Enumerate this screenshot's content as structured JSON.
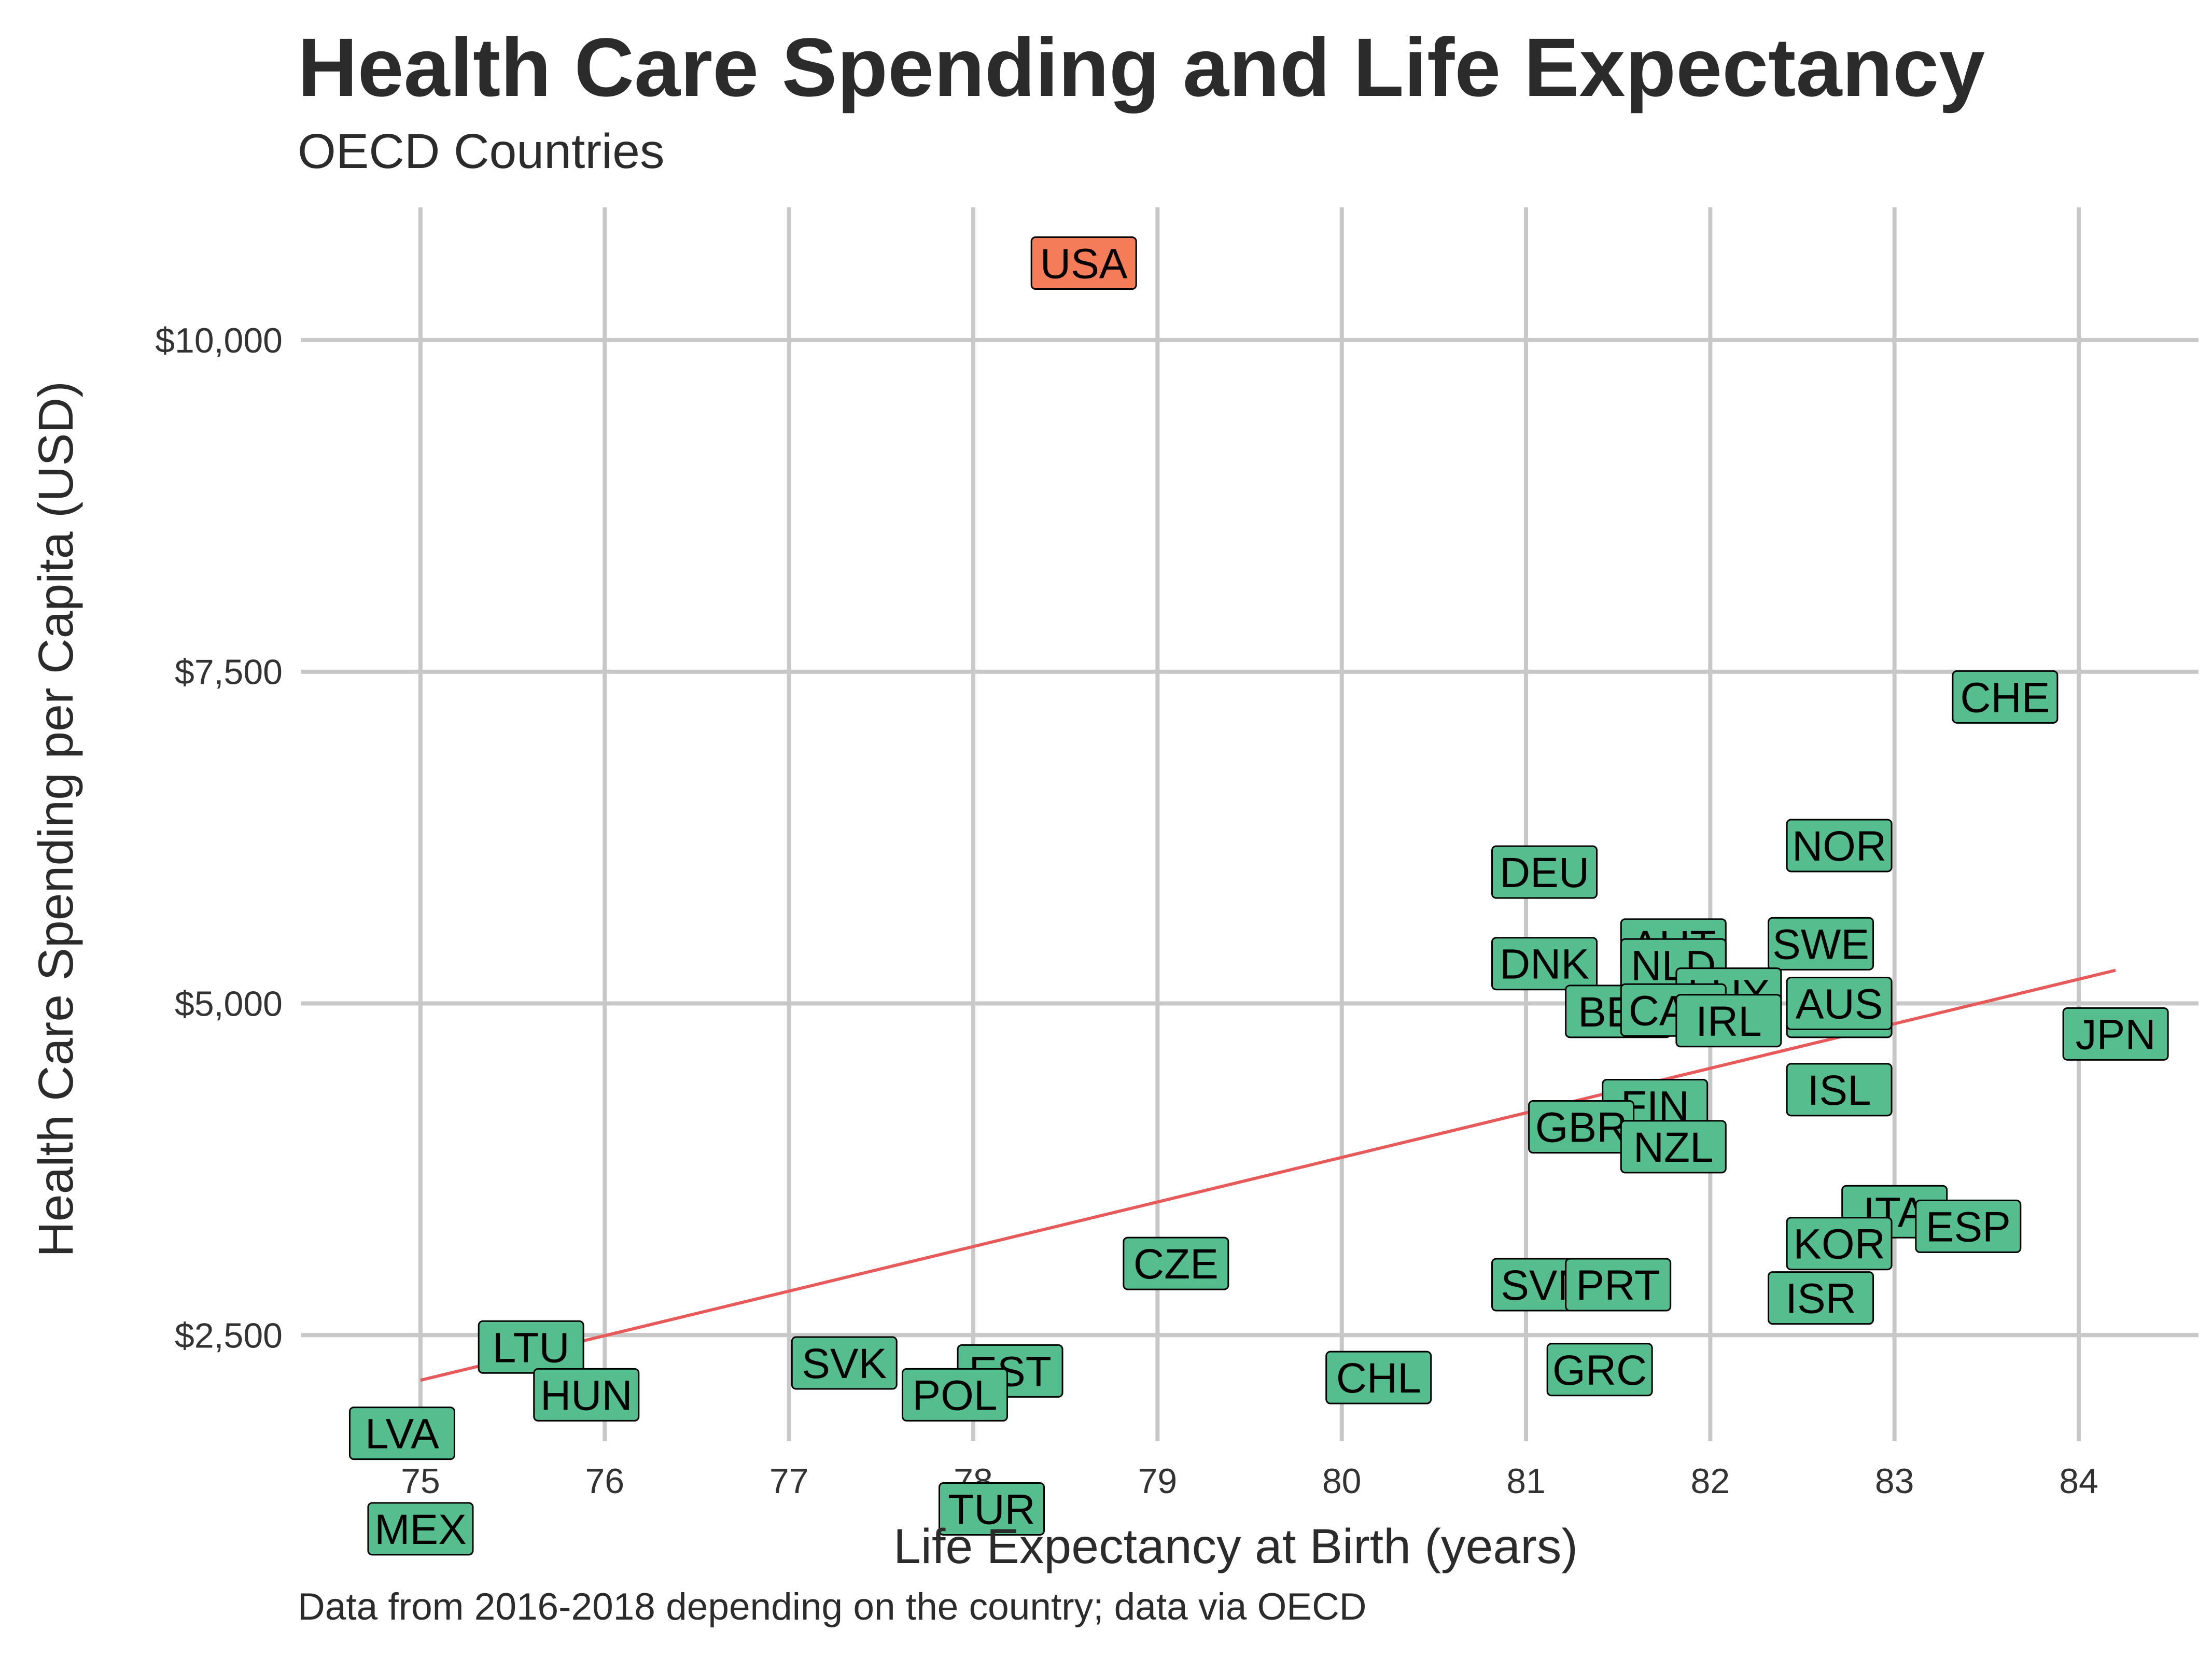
{
  "title": "Health Care Spending and Life Expectancy",
  "subtitle": "OECD Countries",
  "caption": "Data from 2016-2018 depending on the country; data via OECD",
  "colors": {
    "highlight": "#f47c59",
    "default": "#55bd8e",
    "trend": "#e8595a",
    "grid": "#c8c8c8"
  },
  "chart_data": {
    "type": "scatter",
    "title": "Health Care Spending and Life Expectancy",
    "subtitle": "OECD Countries",
    "xlabel": "Life Expectancy at Birth (years)",
    "ylabel": "Health Care Spending per Capita (USD)",
    "xlim": [
      74.35,
      84.65
    ],
    "ylim": [
      1700,
      11000
    ],
    "xticks": [
      75,
      76,
      77,
      78,
      79,
      80,
      81,
      82,
      83,
      84
    ],
    "xtick_labels": [
      "75",
      "76",
      "77",
      "78",
      "79",
      "80",
      "81",
      "82",
      "83",
      "84"
    ],
    "yticks": [
      2500,
      5000,
      7500,
      10000
    ],
    "ytick_labels": [
      "$2,500",
      "$5,000",
      "$7,500",
      "$10,000"
    ],
    "grid": true,
    "legend": "none",
    "trend_line": {
      "x": [
        75.0,
        84.2
      ],
      "y": [
        2160,
        5250
      ]
    },
    "points": [
      {
        "label": "USA",
        "x": 78.6,
        "y": 10580,
        "highlight": true
      },
      {
        "label": "CHE",
        "x": 83.6,
        "y": 7310,
        "highlight": false
      },
      {
        "label": "NOR",
        "x": 82.7,
        "y": 6190,
        "highlight": false
      },
      {
        "label": "DEU",
        "x": 81.1,
        "y": 5990,
        "highlight": false
      },
      {
        "label": "AUT",
        "x": 81.8,
        "y": 5440,
        "highlight": false
      },
      {
        "label": "SWE",
        "x": 82.6,
        "y": 5450,
        "highlight": false
      },
      {
        "label": "DNK",
        "x": 81.1,
        "y": 5300,
        "highlight": false
      },
      {
        "label": "NLD",
        "x": 81.8,
        "y": 5290,
        "highlight": false
      },
      {
        "label": "LUX",
        "x": 82.1,
        "y": 5070,
        "highlight": false
      },
      {
        "label": "FRA",
        "x": 82.7,
        "y": 4940,
        "highlight": false
      },
      {
        "label": "BEL",
        "x": 81.5,
        "y": 4940,
        "highlight": false
      },
      {
        "label": "CAN",
        "x": 81.8,
        "y": 4950,
        "highlight": false
      },
      {
        "label": "IRL",
        "x": 82.1,
        "y": 4870,
        "highlight": false
      },
      {
        "label": "AUS",
        "x": 82.7,
        "y": 5000,
        "highlight": false
      },
      {
        "label": "JPN",
        "x": 84.2,
        "y": 4770,
        "highlight": false
      },
      {
        "label": "ISL",
        "x": 82.7,
        "y": 4350,
        "highlight": false
      },
      {
        "label": "FIN",
        "x": 81.7,
        "y": 4230,
        "highlight": false
      },
      {
        "label": "GBR",
        "x": 81.3,
        "y": 4070,
        "highlight": false
      },
      {
        "label": "NZL",
        "x": 81.8,
        "y": 3920,
        "highlight": false
      },
      {
        "label": "ITA",
        "x": 83.0,
        "y": 3430,
        "highlight": false
      },
      {
        "label": "ESP",
        "x": 83.4,
        "y": 3320,
        "highlight": false
      },
      {
        "label": "KOR",
        "x": 82.7,
        "y": 3190,
        "highlight": false
      },
      {
        "label": "CZE",
        "x": 79.1,
        "y": 3040,
        "highlight": false
      },
      {
        "label": "SVN",
        "x": 81.1,
        "y": 2880,
        "highlight": false
      },
      {
        "label": "PRT",
        "x": 81.5,
        "y": 2880,
        "highlight": false
      },
      {
        "label": "ISR",
        "x": 82.6,
        "y": 2780,
        "highlight": false
      },
      {
        "label": "LTU",
        "x": 75.6,
        "y": 2410,
        "highlight": false
      },
      {
        "label": "SVK",
        "x": 77.3,
        "y": 2290,
        "highlight": false
      },
      {
        "label": "EST",
        "x": 78.2,
        "y": 2230,
        "highlight": false
      },
      {
        "label": "GRC",
        "x": 81.4,
        "y": 2240,
        "highlight": false
      },
      {
        "label": "CHL",
        "x": 80.2,
        "y": 2180,
        "highlight": false
      },
      {
        "label": "POL",
        "x": 77.9,
        "y": 2050,
        "highlight": false
      },
      {
        "label": "HUN",
        "x": 75.9,
        "y": 2050,
        "highlight": false
      },
      {
        "label": "LVA",
        "x": 74.9,
        "y": 1760,
        "highlight": false
      },
      {
        "label": "TUR",
        "x": 78.1,
        "y": 1190,
        "highlight": false
      },
      {
        "label": "MEX",
        "x": 75.0,
        "y": 1040,
        "highlight": false
      }
    ]
  }
}
